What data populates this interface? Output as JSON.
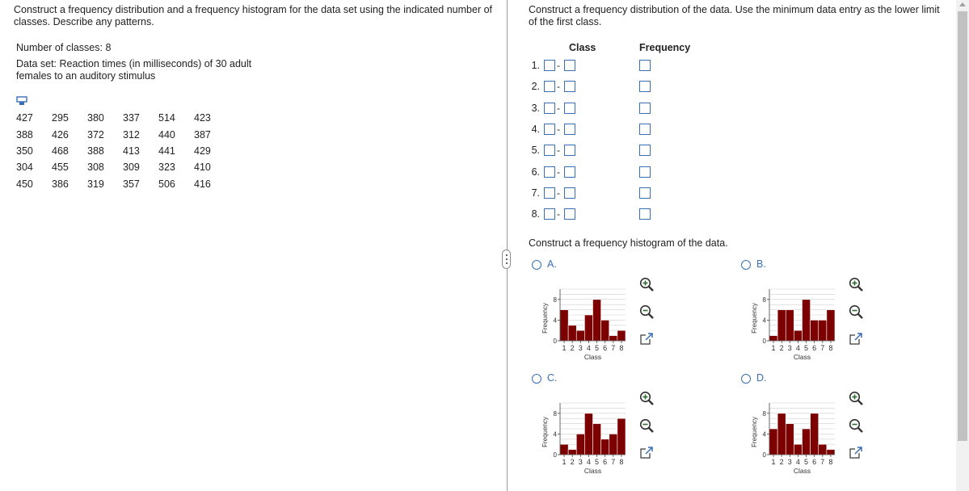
{
  "left": {
    "prompt": "Construct a frequency distribution and a frequency histogram for the data set using the indicated number of classes. Describe any patterns.",
    "num_classes": "Number of classes: 8",
    "data_set": "Data set: Reaction times (in milliseconds) of 30 adult females to an auditory stimulus",
    "table": [
      [
        "427",
        "295",
        "380",
        "337",
        "514",
        "423"
      ],
      [
        "388",
        "426",
        "372",
        "312",
        "440",
        "387"
      ],
      [
        "350",
        "468",
        "388",
        "413",
        "441",
        "429"
      ],
      [
        "304",
        "455",
        "308",
        "309",
        "323",
        "410"
      ],
      [
        "450",
        "386",
        "319",
        "357",
        "506",
        "416"
      ]
    ]
  },
  "right": {
    "prompt": "Construct a frequency distribution of the data. Use the minimum data entry as the lower limit of the first class.",
    "col_class": "Class",
    "col_frequency": "Frequency",
    "rows": [
      "1.",
      "2.",
      "3.",
      "4.",
      "5.",
      "6.",
      "7.",
      "8."
    ],
    "dash": "-",
    "hist_prompt": "Construct a frequency histogram of the data.",
    "options": [
      {
        "label": "A.",
        "values": [
          6,
          3,
          2,
          5,
          8,
          4,
          1,
          2
        ]
      },
      {
        "label": "B.",
        "values": [
          1,
          6,
          6,
          2,
          8,
          4,
          4,
          6
        ]
      },
      {
        "label": "C.",
        "values": [
          2,
          1,
          4,
          8,
          6,
          3,
          4,
          7
        ]
      },
      {
        "label": "D.",
        "values": [
          5,
          8,
          6,
          2,
          5,
          8,
          2,
          1
        ]
      }
    ],
    "chart_ylabel": "Frequency",
    "chart_xlabel": "Class",
    "chart_yticks": [
      0,
      4,
      8
    ],
    "chart_xticks": [
      "1",
      "2",
      "3",
      "4",
      "5",
      "6",
      "7",
      "8"
    ],
    "chart_ymax": 10,
    "bar_color": "#7d0000"
  }
}
